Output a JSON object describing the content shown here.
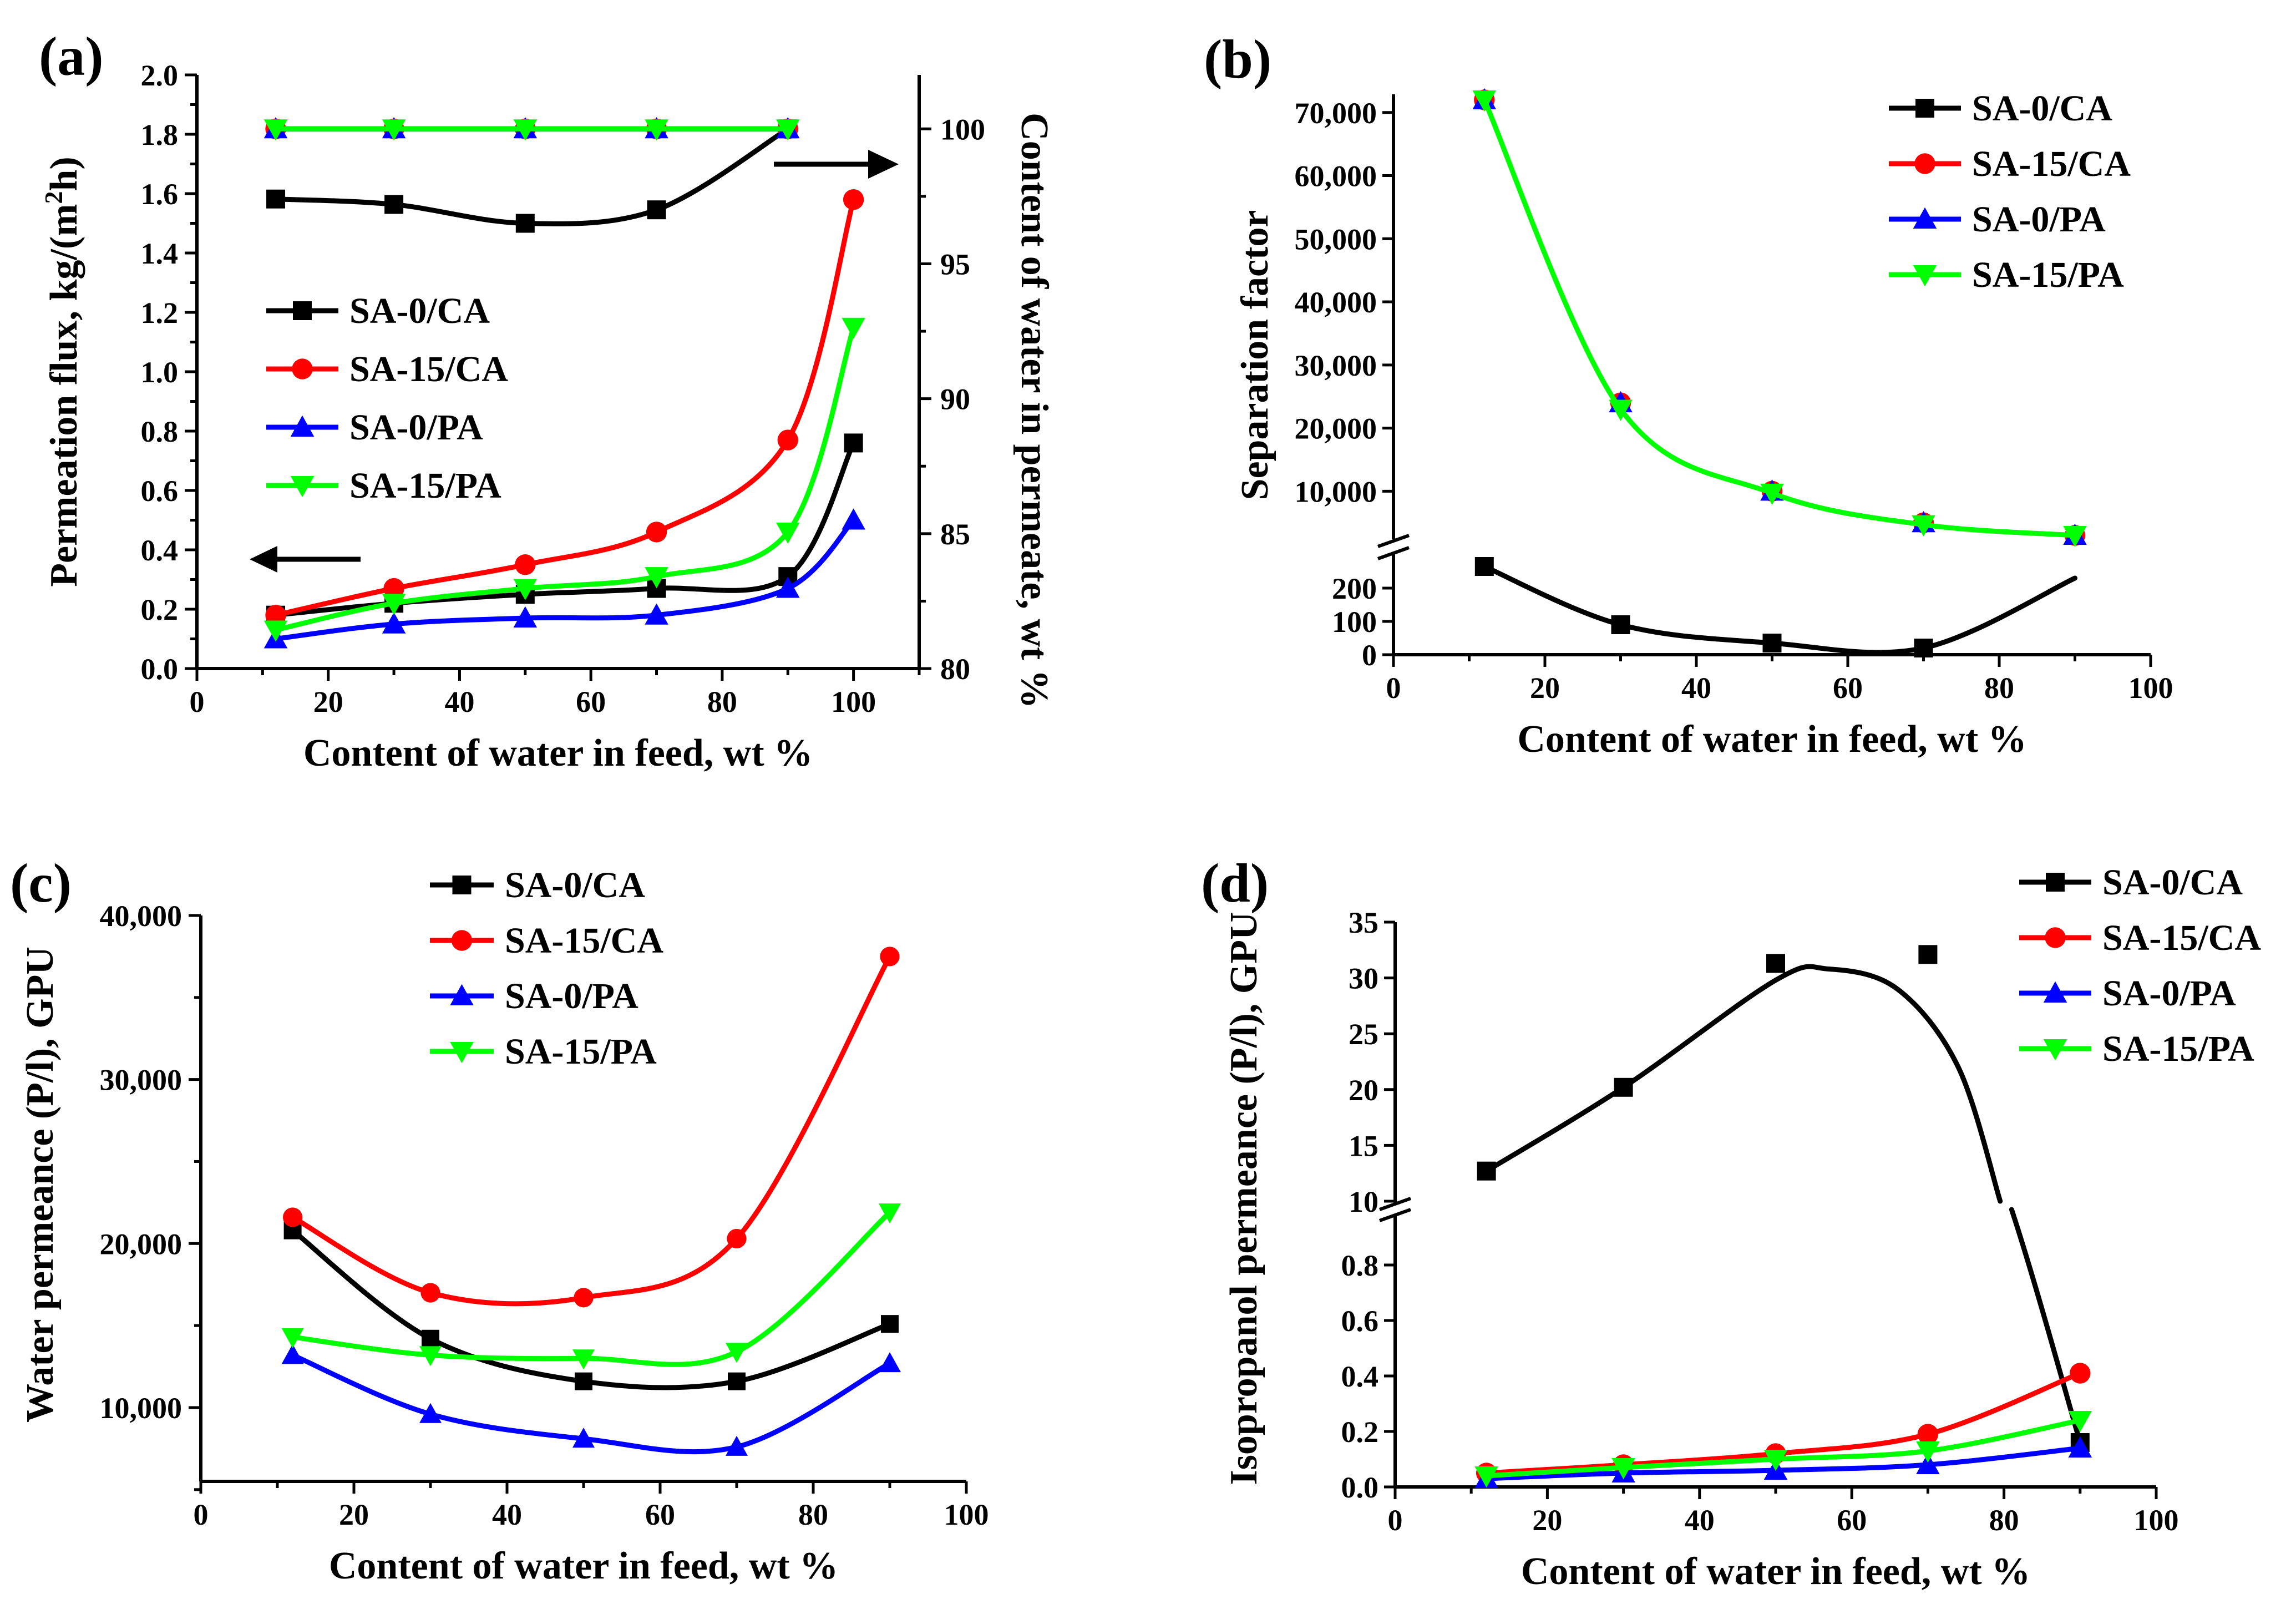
{
  "colors": {
    "SA-0/CA": "#000000",
    "SA-15/CA": "#ff0000",
    "SA-0/PA": "#0000ff",
    "SA-15/PA": "#00ff00"
  },
  "chart_data": [
    {
      "id": "a",
      "type": "line",
      "panel_label": "(a)",
      "xlabel": "Content of water in feed, wt %",
      "ylabel_parts": [
        "Permeation flux, kg/(m",
        "2",
        "h)"
      ],
      "y2label": "Content of water in permeate, wt %",
      "xlim": [
        0,
        110
      ],
      "ylim": [
        0,
        2.0
      ],
      "y2lim": [
        80,
        102
      ],
      "xticks": [
        "0",
        "20",
        "40",
        "60",
        "80",
        "100"
      ],
      "yticks": [
        "0.0",
        "0.2",
        "0.4",
        "0.6",
        "0.8",
        "1.0",
        "1.2",
        "1.4",
        "1.6",
        "1.8",
        "2.0"
      ],
      "y2ticks": [
        "80",
        "85",
        "90",
        "95",
        "100"
      ],
      "legend": [
        "SA-0/CA",
        "SA-15/CA",
        "SA-0/PA",
        "SA-15/PA"
      ],
      "annotations": [
        "arrow pointing left to flux axis",
        "arrow pointing right to permeate axis"
      ],
      "series": [
        {
          "name": "SA-0/CA",
          "axis": "left",
          "x": [
            12,
            30,
            50,
            70,
            90,
            100
          ],
          "values": [
            0.18,
            0.22,
            0.25,
            0.27,
            0.31,
            0.76
          ]
        },
        {
          "name": "SA-15/CA",
          "axis": "left",
          "x": [
            12,
            30,
            50,
            70,
            90,
            100
          ],
          "values": [
            0.18,
            0.27,
            0.35,
            0.46,
            0.77,
            1.58
          ]
        },
        {
          "name": "SA-0/PA",
          "axis": "left",
          "x": [
            12,
            30,
            50,
            70,
            90,
            100
          ],
          "values": [
            0.1,
            0.15,
            0.17,
            0.18,
            0.27,
            0.5
          ]
        },
        {
          "name": "SA-15/PA",
          "axis": "left",
          "x": [
            12,
            30,
            50,
            70,
            90,
            100
          ],
          "values": [
            0.13,
            0.22,
            0.27,
            0.31,
            0.46,
            1.15
          ]
        },
        {
          "name": "SA-0/CA",
          "axis": "right",
          "x": [
            12,
            30,
            50,
            70,
            90
          ],
          "values": [
            97.4,
            97.2,
            96.5,
            97.0,
            100
          ]
        },
        {
          "name": "SA-15/CA",
          "axis": "right",
          "x": [
            12,
            30,
            50,
            70,
            90
          ],
          "values": [
            100,
            100,
            100,
            100,
            100
          ]
        },
        {
          "name": "SA-0/PA",
          "axis": "right",
          "x": [
            12,
            30,
            50,
            70,
            90
          ],
          "values": [
            100,
            100,
            100,
            100,
            100
          ]
        },
        {
          "name": "SA-15/PA",
          "axis": "right",
          "x": [
            12,
            30,
            50,
            70,
            90
          ],
          "values": [
            100,
            100,
            100,
            100,
            100
          ]
        }
      ]
    },
    {
      "id": "b",
      "type": "line",
      "panel_label": "(b)",
      "xlabel": "Content of water in feed, wt %",
      "ylabel": "Separation factor",
      "xlim": [
        0,
        100
      ],
      "ylim_lower": [
        0,
        300
      ],
      "ylim_upper": [
        3000,
        72000
      ],
      "axis_break": true,
      "xticks": [
        "0",
        "20",
        "40",
        "60",
        "80",
        "100"
      ],
      "yticks_lower": [
        "0",
        "100",
        "200"
      ],
      "yticks_upper": [
        "10,000",
        "20,000",
        "30,000",
        "40,000",
        "50,000",
        "60,000",
        "70,000"
      ],
      "legend": [
        "SA-0/CA",
        "SA-15/CA",
        "SA-0/PA",
        "SA-15/PA"
      ],
      "series": [
        {
          "name": "SA-0/CA",
          "x": [
            12,
            30,
            50,
            70
          ],
          "values": [
            265,
            90,
            35,
            20
          ]
        },
        {
          "name": "SA-15/CA",
          "x": [
            12,
            30,
            50,
            70,
            90
          ],
          "values": [
            72000,
            24000,
            10000,
            5000,
            3000
          ]
        },
        {
          "name": "SA-0/PA",
          "x": [
            12,
            30,
            50,
            70,
            90
          ],
          "values": [
            72000,
            24000,
            10000,
            5000,
            3000
          ]
        },
        {
          "name": "SA-15/PA",
          "x": [
            12,
            30,
            50,
            70,
            90
          ],
          "values": [
            72000,
            23000,
            9700,
            4700,
            3000
          ]
        }
      ]
    },
    {
      "id": "c",
      "type": "line",
      "panel_label": "(c)",
      "xlabel": "Content of water in feed, wt %",
      "ylabel": "Water permeance (P/l), GPU",
      "xlim": [
        0,
        100
      ],
      "ylim": [
        5500,
        40000
      ],
      "xticks": [
        "0",
        "20",
        "40",
        "60",
        "80",
        "100"
      ],
      "yticks": [
        "10,000",
        "20,000",
        "30,000",
        "40,000"
      ],
      "legend": [
        "SA-0/CA",
        "SA-15/CA",
        "SA-0/PA",
        "SA-15/PA"
      ],
      "series": [
        {
          "name": "SA-0/CA",
          "x": [
            12,
            30,
            50,
            70,
            90
          ],
          "values": [
            20800,
            14200,
            11600,
            11600,
            15100
          ]
        },
        {
          "name": "SA-15/CA",
          "x": [
            12,
            30,
            50,
            70,
            90
          ],
          "values": [
            21600,
            17000,
            16700,
            20300,
            37500
          ]
        },
        {
          "name": "SA-0/PA",
          "x": [
            12,
            30,
            50,
            70,
            90
          ],
          "values": [
            13200,
            9600,
            8100,
            7600,
            12700
          ]
        },
        {
          "name": "SA-15/PA",
          "x": [
            12,
            30,
            50,
            70,
            90
          ],
          "values": [
            14300,
            13200,
            13000,
            13400,
            21900
          ]
        }
      ]
    },
    {
      "id": "d",
      "type": "line",
      "panel_label": "(d)",
      "xlabel": "Content of water in feed, wt %",
      "ylabel": "Isopropanol permeance (P/l), GPU",
      "xlim": [
        0,
        100
      ],
      "ylim_lower": [
        0,
        1.0
      ],
      "ylim_upper": [
        10,
        35
      ],
      "axis_break": true,
      "xticks": [
        "0",
        "20",
        "40",
        "60",
        "80",
        "100"
      ],
      "yticks_lower": [
        "0.0",
        "0.2",
        "0.4",
        "0.6",
        "0.8"
      ],
      "yticks_upper": [
        "10",
        "15",
        "20",
        "25",
        "30",
        "35"
      ],
      "legend": [
        "SA-0/CA",
        "SA-15/CA",
        "SA-0/PA",
        "SA-15/PA"
      ],
      "series": [
        {
          "name": "SA-0/CA",
          "x": [
            12,
            30,
            50,
            70,
            90
          ],
          "values": [
            12.7,
            20.2,
            31.3,
            32.1,
            0.16
          ]
        },
        {
          "name": "SA-15/CA",
          "x": [
            12,
            30,
            50,
            70,
            90
          ],
          "values": [
            0.05,
            0.08,
            0.12,
            0.19,
            0.41
          ]
        },
        {
          "name": "SA-0/PA",
          "x": [
            12,
            30,
            50,
            70,
            90
          ],
          "values": [
            0.03,
            0.05,
            0.06,
            0.08,
            0.14
          ]
        },
        {
          "name": "SA-15/PA",
          "x": [
            12,
            30,
            50,
            70,
            90
          ],
          "values": [
            0.04,
            0.07,
            0.1,
            0.13,
            0.24
          ]
        }
      ]
    }
  ]
}
